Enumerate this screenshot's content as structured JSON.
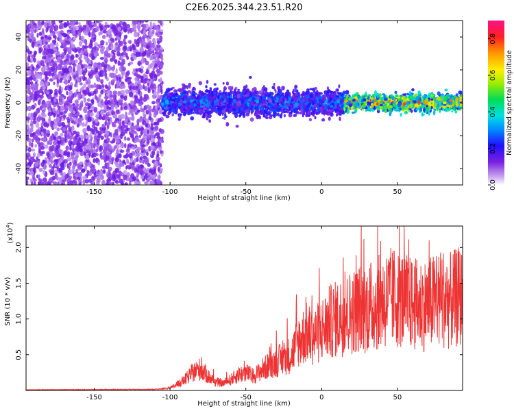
{
  "title": "C2E6.2025.344.23.51.R20",
  "chart_data": [
    {
      "type": "heatmap",
      "xlabel": "Height of straight line (km)",
      "ylabel": "Frequency (Hz)",
      "xlim": [
        -195,
        93
      ],
      "ylim": [
        -50,
        50
      ],
      "x_ticks": [
        -150,
        -100,
        -50,
        0,
        50
      ],
      "y_ticks": [
        -40,
        -20,
        0,
        20,
        40
      ],
      "colorbar": {
        "label": "Normalized spectral amplitude",
        "range": [
          0,
          0.9
        ],
        "ticks": [
          0.0,
          0.2,
          0.4,
          0.6,
          0.8
        ]
      },
      "regions": [
        {
          "x_range": [
            -195,
            -105
          ],
          "freq_range": [
            -50,
            50
          ],
          "amplitude": [
            0.05,
            0.15
          ]
        },
        {
          "x_range": [
            -105,
            15
          ],
          "freq_range": [
            -10,
            10
          ],
          "amplitude": [
            0.1,
            0.35
          ]
        },
        {
          "x_range": [
            15,
            93
          ],
          "freq_range": [
            -6,
            6
          ],
          "amplitude": [
            0.2,
            0.85
          ]
        }
      ],
      "grid": false
    },
    {
      "type": "line",
      "xlabel": "Height of straight line (km)",
      "ylabel": "SNR (10 * v/v)",
      "y_scale_note": "(x10",
      "y_scale_exp": "4",
      "xlim": [
        -195,
        93
      ],
      "ylim": [
        0,
        23000
      ],
      "x_ticks": [
        -150,
        -100,
        -50,
        0,
        50
      ],
      "y_ticks": [
        5000,
        10000,
        15000,
        20000
      ],
      "y_tick_labels": [
        "0.5",
        "1.0",
        "1.5",
        "2.0"
      ],
      "color": "#ee3333",
      "x": [
        -195,
        -110,
        -100,
        -90,
        -85,
        -80,
        -75,
        -70,
        -65,
        -60,
        -55,
        -50,
        -45,
        -40,
        -35,
        -30,
        -25,
        -20,
        -15,
        -10,
        -5,
        0,
        5,
        10,
        15,
        20,
        25,
        30,
        35,
        40,
        45,
        50,
        55,
        60,
        65,
        70,
        75,
        80,
        85,
        90,
        93
      ],
      "values": [
        100,
        150,
        300,
        1500,
        2500,
        3000,
        2000,
        1200,
        1000,
        1500,
        2200,
        2500,
        2000,
        2800,
        3500,
        4000,
        4500,
        5000,
        7000,
        8000,
        7500,
        8500,
        9500,
        10000,
        10500,
        11000,
        11500,
        11500,
        12000,
        12500,
        13000,
        13000,
        12500,
        12000,
        12000,
        12000,
        12500,
        13000,
        12500,
        13000,
        13000
      ],
      "grid": false
    }
  ]
}
